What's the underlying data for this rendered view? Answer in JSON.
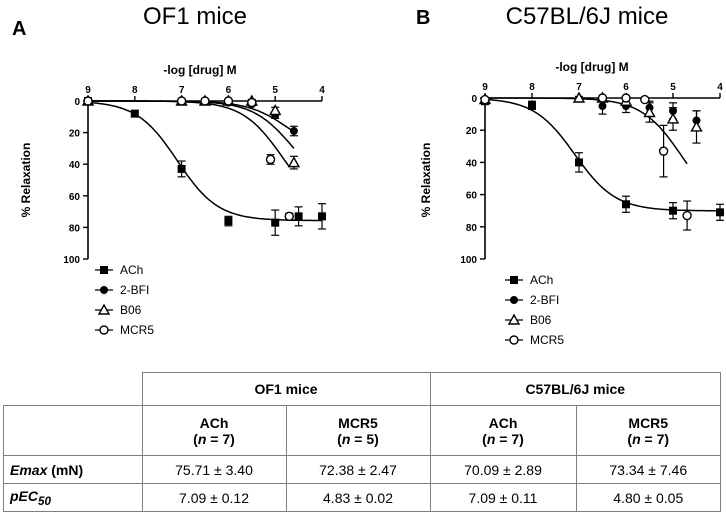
{
  "figure": {
    "panels": [
      {
        "letter": "A",
        "title": "OF1 mice",
        "x_axis_title": "-log [drug] M",
        "y_axis_title": "% Relaxation"
      },
      {
        "letter": "B",
        "title": "C57BL/6J mice",
        "x_axis_title": "-log [drug] M",
        "y_axis_title": "% Relaxation"
      }
    ]
  },
  "chart_data": [
    {
      "type": "scatter",
      "title": "OF1 mice",
      "xlabel": "-log [drug] M",
      "ylabel": "% Relaxation",
      "xlim": [
        9,
        4
      ],
      "ylim": [
        0,
        100
      ],
      "y_inverted": true,
      "x_ticks": [
        "9",
        "8",
        "7",
        "6",
        "5",
        "4"
      ],
      "y_ticks": [
        "0",
        "20",
        "40",
        "60",
        "80",
        "100"
      ],
      "legend": {
        "position": "bottom-left",
        "entries": [
          "ACh",
          "2-BFI",
          "B06",
          "MCR5"
        ]
      },
      "series": [
        {
          "name": "ACh",
          "marker": "square-filled",
          "x": [
            9,
            8,
            7,
            6,
            5,
            4.5,
            4
          ],
          "y": [
            0,
            8,
            43,
            76,
            77,
            73,
            73
          ],
          "err": [
            1,
            2,
            5,
            3,
            8,
            6,
            8
          ],
          "fit": {
            "bottom": 0,
            "top": 75.71,
            "pec50": 7.09
          }
        },
        {
          "name": "2-BFI",
          "marker": "circle-filled",
          "x": [
            9,
            7,
            6.5,
            6,
            5.5,
            5,
            4.6
          ],
          "y": [
            0,
            0,
            0,
            1,
            2,
            9,
            19
          ],
          "err": [
            0.5,
            0.5,
            0.5,
            1,
            1,
            2,
            3
          ],
          "fit": {
            "bottom": 0,
            "top": 35,
            "pec50": 4.7
          }
        },
        {
          "name": "B06",
          "marker": "triangle-open",
          "x": [
            9,
            7,
            6.5,
            6,
            5.5,
            5,
            4.6
          ],
          "y": [
            0,
            0,
            0,
            0,
            0,
            6,
            39
          ],
          "err": [
            0.5,
            0.5,
            0.5,
            1,
            1,
            2,
            4
          ],
          "fit": {
            "bottom": 0,
            "top": 60,
            "pec50": 4.6
          }
        },
        {
          "name": "MCR5",
          "marker": "circle-open",
          "x": [
            9,
            7,
            6.5,
            6,
            5.5,
            5.1,
            4.7
          ],
          "y": [
            0,
            0,
            0,
            0,
            1,
            37,
            73
          ],
          "err": [
            0.5,
            0.5,
            0.5,
            1,
            1,
            3,
            2
          ],
          "fit": {
            "bottom": 0,
            "top": 72.38,
            "pec50": 4.83
          }
        }
      ]
    },
    {
      "type": "scatter",
      "title": "C57BL/6J mice",
      "xlabel": "-log [drug] M",
      "ylabel": "% Relaxation",
      "xlim": [
        9,
        4
      ],
      "ylim": [
        0,
        100
      ],
      "y_inverted": true,
      "x_ticks": [
        "9",
        "8",
        "7",
        "6",
        "5",
        "4"
      ],
      "y_ticks": [
        "0",
        "20",
        "40",
        "60",
        "80",
        "100"
      ],
      "legend": {
        "position": "bottom-left",
        "entries": [
          "ACh",
          "2-BFI",
          "B06",
          "MCR5"
        ]
      },
      "series": [
        {
          "name": "ACh",
          "marker": "square-filled",
          "x": [
            9,
            8,
            7,
            6,
            5,
            4
          ],
          "y": [
            2,
            5,
            40,
            66,
            70,
            71
          ],
          "err": [
            1,
            2,
            6,
            5,
            5,
            5
          ],
          "fit": {
            "bottom": 0,
            "top": 70.09,
            "pec50": 7.09
          }
        },
        {
          "name": "2-BFI",
          "marker": "circle-filled",
          "x": [
            9,
            8,
            6.5,
            6,
            5.5,
            5,
            4.5
          ],
          "y": [
            2,
            4,
            5,
            5,
            6,
            8,
            14
          ],
          "err": [
            1,
            2,
            5,
            4,
            4,
            5,
            6
          ],
          "fit": null
        },
        {
          "name": "B06",
          "marker": "triangle-open",
          "x": [
            9,
            7,
            6.5,
            6,
            5.5,
            5,
            4.5
          ],
          "y": [
            1,
            0,
            0,
            2,
            9,
            13,
            18
          ],
          "err": [
            1,
            1,
            1,
            3,
            6,
            7,
            10
          ],
          "fit": null
        },
        {
          "name": "MCR5",
          "marker": "circle-open",
          "x": [
            9,
            6.5,
            6,
            5.6,
            5.2,
            4.7
          ],
          "y": [
            1,
            0,
            0,
            1,
            33,
            73
          ],
          "err": [
            1,
            1,
            1,
            1,
            16,
            9
          ],
          "fit": {
            "bottom": 0,
            "top": 73.34,
            "pec50": 4.8
          }
        }
      ]
    }
  ],
  "stats_table": {
    "group_headers": [
      "OF1 mice",
      "C57BL/6J mice"
    ],
    "columns": [
      {
        "drug": "ACh",
        "n": "7"
      },
      {
        "drug": "MCR5",
        "n": "5"
      },
      {
        "drug": "ACh",
        "n": "7"
      },
      {
        "drug": "MCR5",
        "n": "7"
      }
    ],
    "n_symbol": "n",
    "rows": [
      {
        "label": "Emax",
        "unit": "(mN)",
        "values": [
          "75.71 ± 3.40",
          "72.38 ± 2.47",
          "70.09 ± 2.89",
          "73.34 ± 7.46"
        ]
      },
      {
        "label": "pEC",
        "subscript": "50",
        "values": [
          "7.09 ± 0.12",
          "4.83 ± 0.02",
          "7.09 ± 0.11",
          "4.80 ± 0.05"
        ]
      }
    ]
  }
}
